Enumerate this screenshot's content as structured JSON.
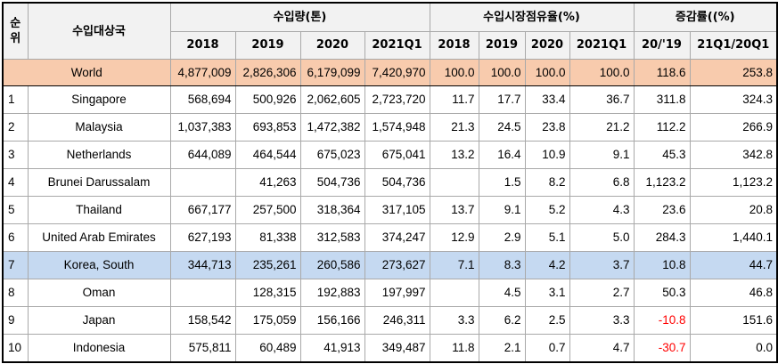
{
  "header": {
    "rank_label": "순위",
    "country_label": "수입대상국",
    "group_volume": "수입량(톤)",
    "group_share": "수입시장점유율(%)",
    "group_growth": "증감률((%)",
    "sub_volume": [
      "2018",
      "2019",
      "2020",
      "2021Q1"
    ],
    "sub_share": [
      "2018",
      "2019",
      "2020",
      "2021Q1"
    ],
    "sub_growth": [
      "20/'19",
      "21Q1/20Q1"
    ]
  },
  "world": {
    "country": "World",
    "volume": [
      "4,877,009",
      "2,826,306",
      "6,179,099",
      "7,420,970"
    ],
    "share": [
      "100.0",
      "100.0",
      "100.0",
      "100.0"
    ],
    "growth": [
      "118.6",
      "253.8"
    ]
  },
  "rows": [
    {
      "rank": "1",
      "country": "Singapore",
      "volume": [
        "568,694",
        "500,926",
        "2,062,605",
        "2,723,720"
      ],
      "share": [
        "11.7",
        "17.7",
        "33.4",
        "36.7"
      ],
      "growth": [
        "311.8",
        "324.3"
      ]
    },
    {
      "rank": "2",
      "country": "Malaysia",
      "volume": [
        "1,037,383",
        "693,853",
        "1,472,382",
        "1,574,948"
      ],
      "share": [
        "21.3",
        "24.5",
        "23.8",
        "21.2"
      ],
      "growth": [
        "112.2",
        "266.9"
      ]
    },
    {
      "rank": "3",
      "country": "Netherlands",
      "volume": [
        "644,089",
        "464,544",
        "675,023",
        "675,041"
      ],
      "share": [
        "13.2",
        "16.4",
        "10.9",
        "9.1"
      ],
      "growth": [
        "45.3",
        "342.8"
      ]
    },
    {
      "rank": "4",
      "country": "Brunei Darussalam",
      "volume": [
        "",
        "41,263",
        "504,736",
        "504,736"
      ],
      "share": [
        "",
        "1.5",
        "8.2",
        "6.8"
      ],
      "growth": [
        "1,123.2",
        "1,123.2"
      ]
    },
    {
      "rank": "5",
      "country": "Thailand",
      "volume": [
        "667,177",
        "257,500",
        "318,364",
        "317,105"
      ],
      "share": [
        "13.7",
        "9.1",
        "5.2",
        "4.3"
      ],
      "growth": [
        "23.6",
        "20.8"
      ]
    },
    {
      "rank": "6",
      "country": "United Arab Emirates",
      "volume": [
        "627,193",
        "81,338",
        "312,583",
        "374,247"
      ],
      "share": [
        "12.9",
        "2.9",
        "5.1",
        "5.0"
      ],
      "growth": [
        "284.3",
        "1,440.1"
      ]
    },
    {
      "rank": "7",
      "country": "Korea, South",
      "volume": [
        "344,713",
        "235,261",
        "260,586",
        "273,627"
      ],
      "share": [
        "7.1",
        "8.3",
        "4.2",
        "3.7"
      ],
      "growth": [
        "10.8",
        "44.7"
      ]
    },
    {
      "rank": "8",
      "country": "Oman",
      "volume": [
        "",
        "128,315",
        "192,883",
        "197,997"
      ],
      "share": [
        "",
        "4.5",
        "3.1",
        "2.7"
      ],
      "growth": [
        "50.3",
        "46.8"
      ]
    },
    {
      "rank": "9",
      "country": "Japan",
      "volume": [
        "158,542",
        "175,059",
        "156,166",
        "246,311"
      ],
      "share": [
        "3.3",
        "6.2",
        "2.5",
        "3.3"
      ],
      "growth": [
        "-10.8",
        "151.6"
      ]
    },
    {
      "rank": "10",
      "country": "Indonesia",
      "volume": [
        "575,811",
        "60,489",
        "41,913",
        "349,487"
      ],
      "share": [
        "11.8",
        "2.1",
        "0.7",
        "4.7"
      ],
      "growth": [
        "-30.7",
        "0.0"
      ]
    }
  ],
  "colors": {
    "world_row": "#f8cbad",
    "highlight_row": "#c5d9f1",
    "negative": "#ff0000",
    "header_bg": "#f2f2f2"
  }
}
